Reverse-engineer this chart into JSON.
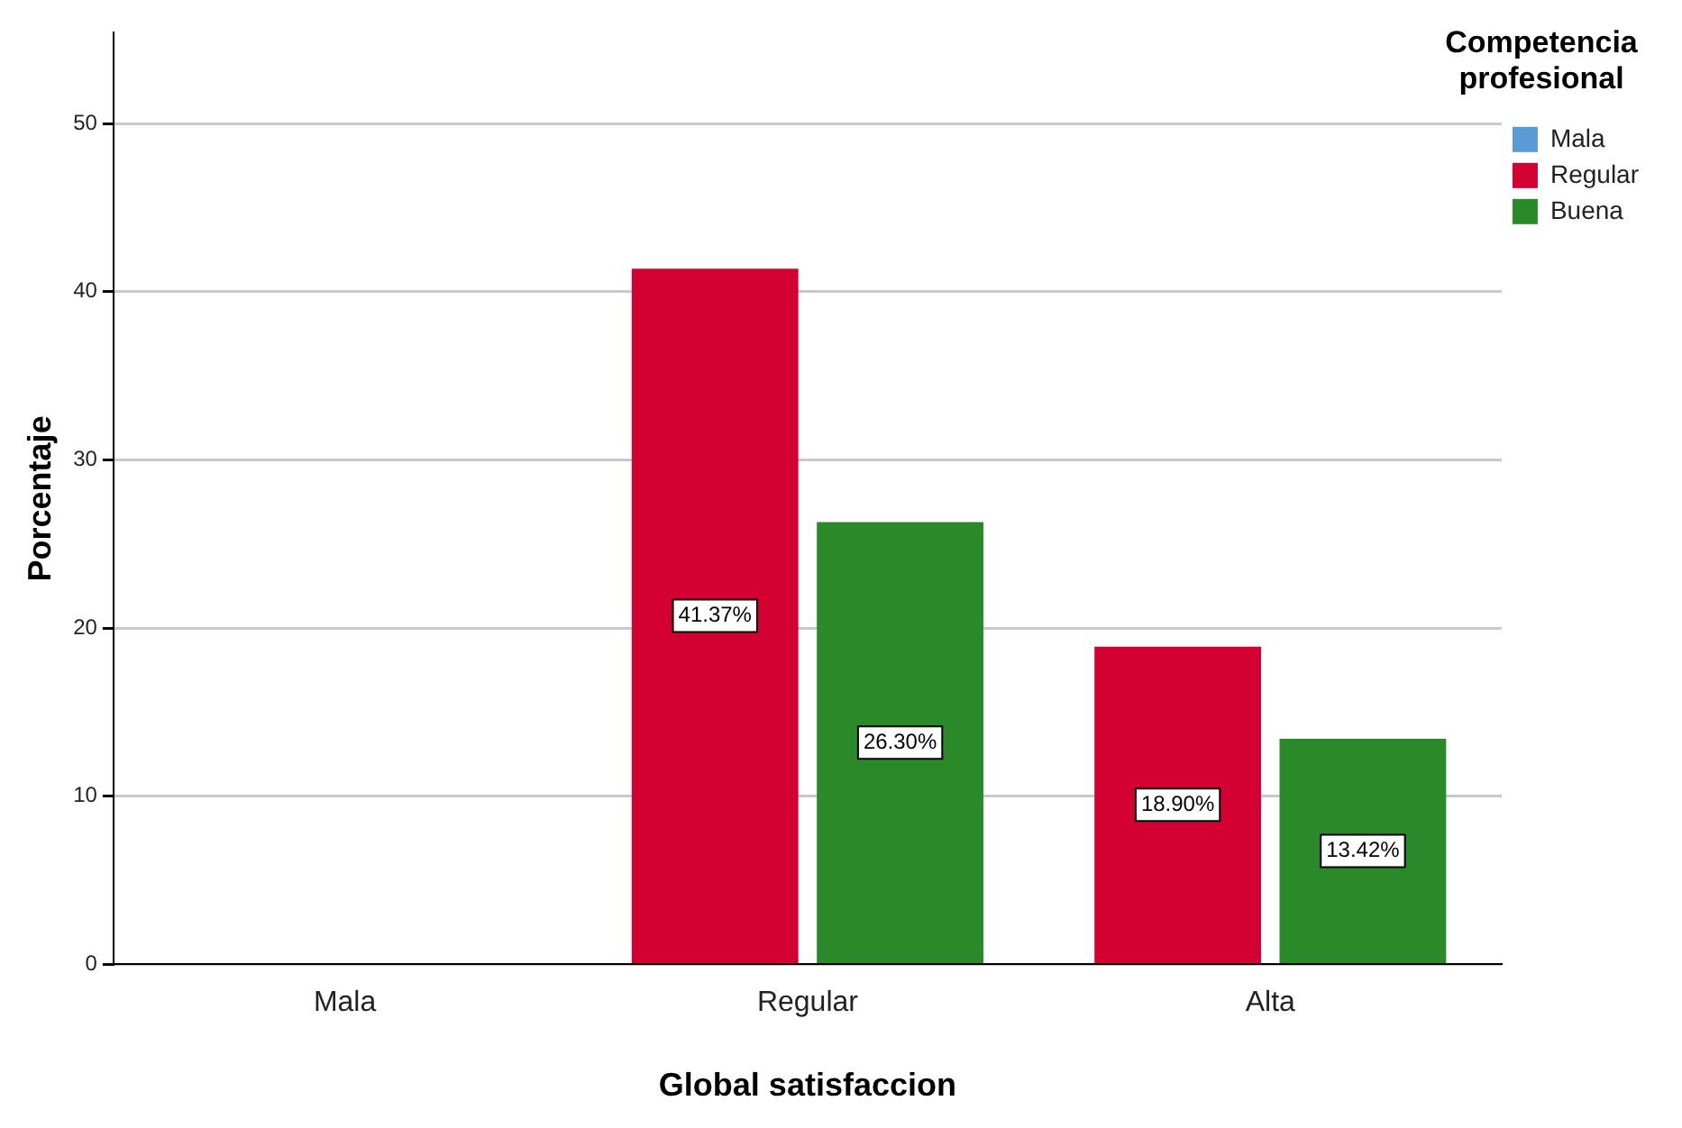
{
  "chart_data": {
    "type": "bar",
    "xlabel": "Global satisfaccion",
    "ylabel": "Porcentaje",
    "legend_title": "Competencia profesional",
    "categories": [
      "Mala",
      "Regular",
      "Alta"
    ],
    "series": [
      {
        "name": "Mala",
        "color": "#5b9bd5",
        "values": [
          null,
          null,
          null
        ]
      },
      {
        "name": "Regular",
        "color": "#d50032",
        "values": [
          null,
          41.37,
          18.9
        ],
        "value_labels": [
          null,
          "41.37%",
          "18.90%"
        ]
      },
      {
        "name": "Buena",
        "color": "#2a8a2a",
        "values": [
          null,
          26.3,
          13.42
        ],
        "value_labels": [
          null,
          "26.30%",
          "13.42%"
        ]
      }
    ],
    "ylim": [
      0,
      55.4
    ],
    "yticks": [
      0,
      10,
      20,
      30,
      40,
      50
    ],
    "grid": "y",
    "legend": "top right"
  }
}
